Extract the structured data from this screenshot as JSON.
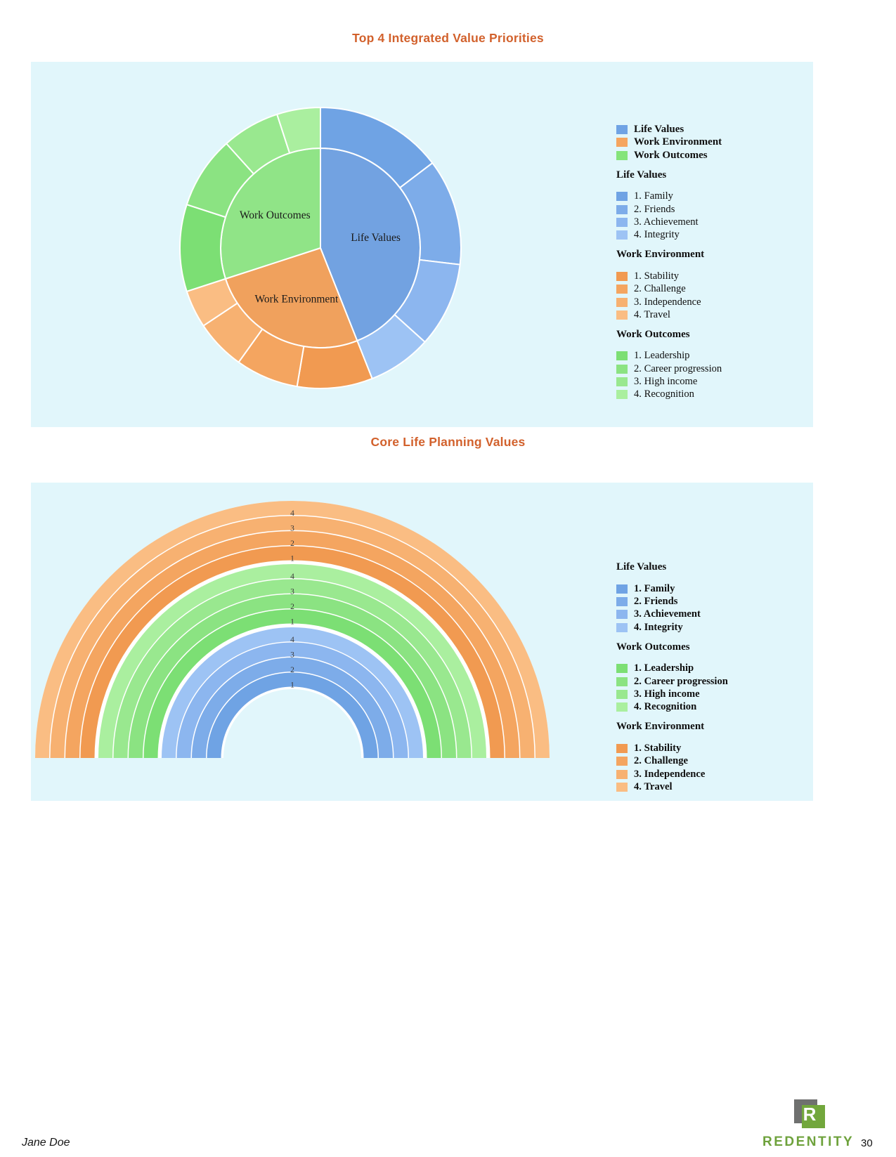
{
  "theme": {
    "panel_bg": "#e1f6fb",
    "title_color": "#d2612c",
    "text_color": "#111111",
    "separator_white": "#ffffff",
    "brand_green": "#6ea23c",
    "logo_gray": "#6f706f",
    "logo_green": "#72a73c"
  },
  "charts": [
    {
      "title": "Top 4 Integrated Value Priorities",
      "legend": {
        "bold_items": false,
        "top_entries": [
          {
            "label": "Life Values",
            "color": "#6fa3e4"
          },
          {
            "label": "Work Environment",
            "color": "#f5a55f"
          },
          {
            "label": "Work Outcomes",
            "color": "#85e47b"
          }
        ],
        "sections": [
          {
            "heading": "Life Values",
            "items": [
              {
                "label": "1. Family",
                "color": "#6fa3e4"
              },
              {
                "label": "2. Friends",
                "color": "#7dace9"
              },
              {
                "label": "3. Achievement",
                "color": "#8cb6ef"
              },
              {
                "label": "4. Integrity",
                "color": "#9dc3f4"
              }
            ]
          },
          {
            "heading": "Work Environment",
            "items": [
              {
                "label": "1. Stability",
                "color": "#f19a51"
              },
              {
                "label": "2. Challenge",
                "color": "#f4a560"
              },
              {
                "label": "3. Independence",
                "color": "#f7b171"
              },
              {
                "label": "4. Travel",
                "color": "#fabd83"
              }
            ]
          },
          {
            "heading": "Work Outcomes",
            "items": [
              {
                "label": "1. Leadership",
                "color": "#7cdf74"
              },
              {
                "label": "2. Career progression",
                "color": "#8be382"
              },
              {
                "label": "3. High income",
                "color": "#99e88f"
              },
              {
                "label": "4. Recognition",
                "color": "#aaef9f"
              }
            ]
          }
        ]
      }
    },
    {
      "title": "Core Life Planning Values",
      "legend": {
        "bold_items": true,
        "top_entries": [],
        "sections": [
          {
            "heading": "Life Values",
            "items": [
              {
                "label": "1. Family",
                "color": "#6fa3e4"
              },
              {
                "label": "2. Friends",
                "color": "#7dace9"
              },
              {
                "label": "3. Achievement",
                "color": "#8cb6ef"
              },
              {
                "label": "4. Integrity",
                "color": "#9dc3f4"
              }
            ]
          },
          {
            "heading": "Work Outcomes",
            "items": [
              {
                "label": "1. Leadership",
                "color": "#7cdf74"
              },
              {
                "label": "2. Career progression",
                "color": "#8be382"
              },
              {
                "label": "3. High income",
                "color": "#99e88f"
              },
              {
                "label": "4. Recognition",
                "color": "#aaef9f"
              }
            ]
          },
          {
            "heading": "Work Environment",
            "items": [
              {
                "label": "1. Stability",
                "color": "#f19a51"
              },
              {
                "label": "2. Challenge",
                "color": "#f4a560"
              },
              {
                "label": "3. Independence",
                "color": "#f7b171"
              },
              {
                "label": "4. Travel",
                "color": "#fabd83"
              }
            ]
          }
        ]
      }
    }
  ],
  "chart_data": [
    {
      "type": "sunburst",
      "title": "Top 4 Integrated Value Priorities",
      "legend_position": "right",
      "categories": [
        "Life Values",
        "Work Environment",
        "Work Outcomes"
      ],
      "values": [
        44,
        26,
        30
      ],
      "units": "percent_of_circle",
      "inner_colors": [
        "#72a2e1",
        "#f0a15d",
        "#90e487"
      ],
      "children": [
        {
          "category": "Life Values",
          "items": [
            "1. Family",
            "2. Friends",
            "3. Achievement",
            "4. Integrity"
          ],
          "weights": [
            6,
            5,
            4,
            3
          ],
          "colors": [
            "#6fa3e4",
            "#7dace9",
            "#8cb6ef",
            "#9dc3f4"
          ]
        },
        {
          "category": "Work Environment",
          "items": [
            "1. Stability",
            "2. Challenge",
            "3. Independence",
            "4. Travel"
          ],
          "weights": [
            6,
            5,
            4,
            3
          ],
          "colors": [
            "#f19a51",
            "#f4a560",
            "#f7b171",
            "#fabd83"
          ]
        },
        {
          "category": "Work Outcomes",
          "items": [
            "1. Leadership",
            "2. Career progression",
            "3. High income",
            "4. Recognition"
          ],
          "weights": [
            6,
            5,
            4,
            3
          ],
          "colors": [
            "#7cdf74",
            "#8be382",
            "#99e88f",
            "#aaef9f"
          ]
        }
      ]
    },
    {
      "type": "half_donut_concentric",
      "title": "Core Life Planning Values",
      "legend_position": "right",
      "rings_outer_to_inner": [
        {
          "group": "Work Environment",
          "ring_labels": [
            "4",
            "3",
            "2",
            "1"
          ],
          "items_outer_to_inner": [
            "4. Travel",
            "3. Independence",
            "2. Challenge",
            "1. Stability"
          ],
          "colors_outer_to_inner": [
            "#fabd83",
            "#f7b171",
            "#f4a560",
            "#f19a51"
          ]
        },
        {
          "group": "Work Outcomes",
          "ring_labels": [
            "4",
            "3",
            "2",
            "1"
          ],
          "items_outer_to_inner": [
            "4. Recognition",
            "3. High income",
            "2. Career progression",
            "1. Leadership"
          ],
          "colors_outer_to_inner": [
            "#aaef9f",
            "#99e88f",
            "#8be382",
            "#7cdf74"
          ]
        },
        {
          "group": "Life Values",
          "ring_labels": [
            "4",
            "3",
            "2",
            "1"
          ],
          "items_outer_to_inner": [
            "4. Integrity",
            "3. Achievement",
            "2. Friends",
            "1. Family"
          ],
          "colors_outer_to_inner": [
            "#9dc3f4",
            "#8cb6ef",
            "#7dace9",
            "#6fa3e4"
          ]
        }
      ]
    }
  ],
  "footer": {
    "author": "Jane Doe",
    "brand": "REDENTITY",
    "logo_letter": "R",
    "page_number": "30"
  }
}
